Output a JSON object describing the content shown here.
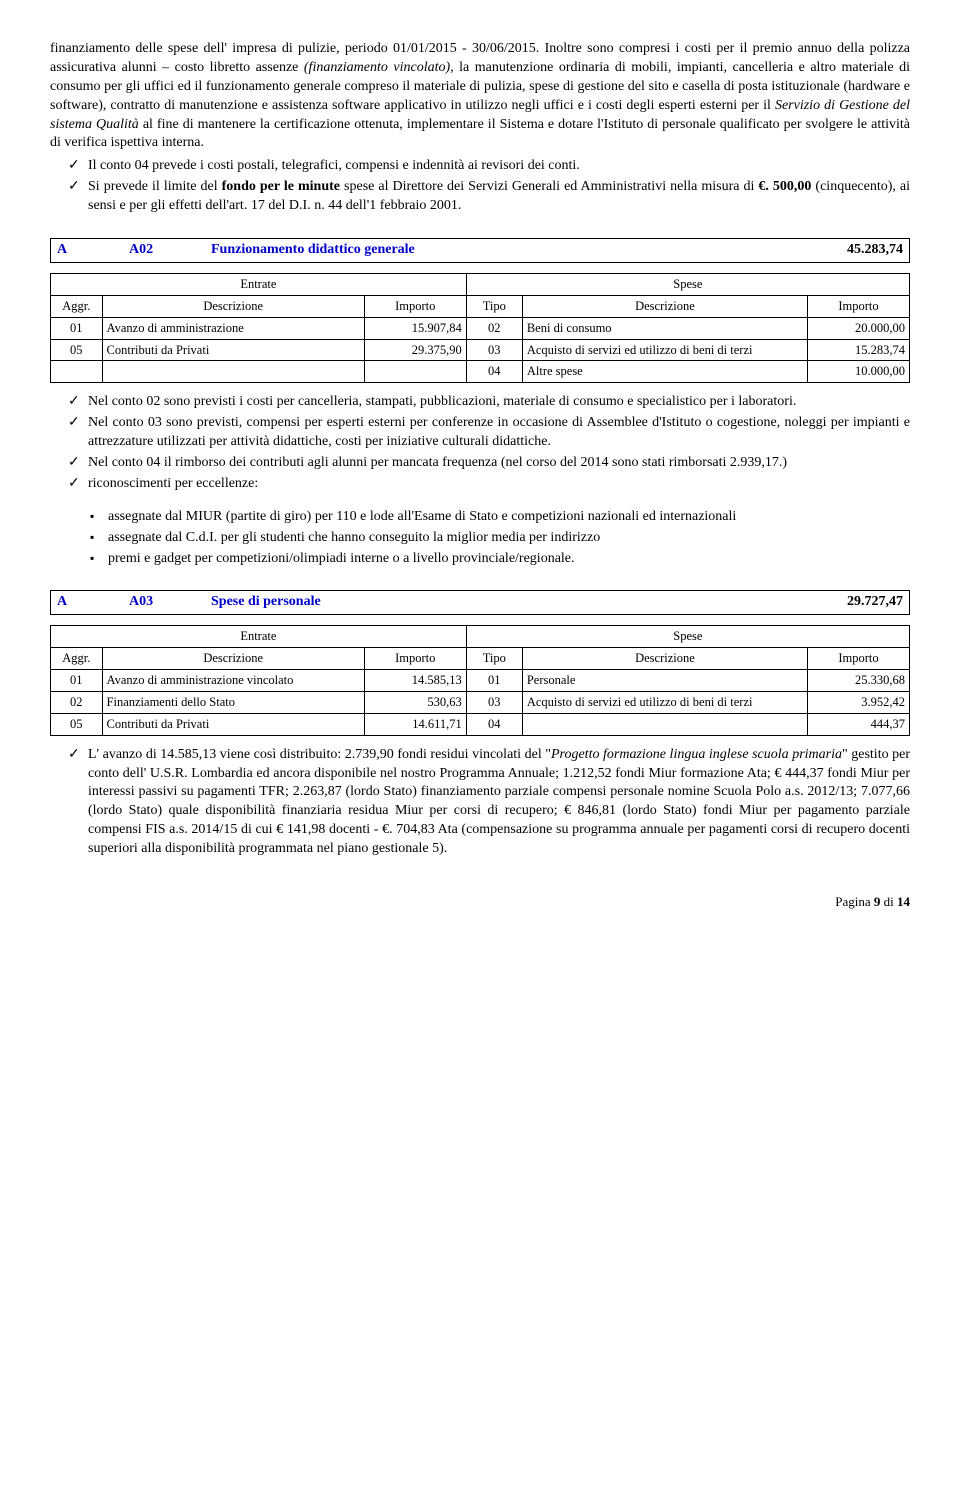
{
  "intro": {
    "p1_a": "finanziamento delle spese dell' impresa di pulizie, periodo 01/01/2015 - 30/06/2015.   Inoltre  sono compresi i costi per il premio annuo della polizza assicurativa alunni – costo libretto assenze ",
    "p1_b": "(finanziamento vincolato),",
    "p1_c": " la manutenzione ordinaria di mobili, impianti,  cancelleria  e altro materiale di consumo per gli uffici ed il funzionamento generale compreso il materiale di pulizia, spese di gestione del sito e casella di posta istituzionale (hardware e  software), contratto di manutenzione e assistenza software applicativo in utilizzo negli uffici e i costi degli esperti esterni per il ",
    "p1_d": " Servizio di Gestione del sistema  Qualità ",
    "p1_e": "al fine di mantenere la certificazione ottenuta, implementare il Sistema e dotare l'Istituto di personale qualificato per svolgere le attività di verifica ispettiva interna."
  },
  "checks1": {
    "c1": "Il conto 04 prevede i costi postali, telegrafici, compensi e indennità ai revisori dei conti.",
    "c2_a": "Si prevede  il limite del ",
    "c2_b": "fondo per le minute",
    "c2_c": " spese al Direttore dei Servizi Generali ed Amministrativi nella misura di ",
    "c2_d": "€. 500,00",
    "c2_e": " (cinquecento), ai sensi e per gli effetti dell'art. 17 del D.I. n. 44 dell'1 febbraio 2001."
  },
  "sectionA02": {
    "codeA": "A",
    "code": "A02",
    "title": "Funzionamento didattico generale",
    "amount": "45.283,74"
  },
  "tableHeaders": {
    "entrate": "Entrate",
    "spese": "Spese",
    "aggr": "Aggr.",
    "desc": "Descrizione",
    "importo": "Importo",
    "tipo": "Tipo"
  },
  "tableA02": {
    "r1": {
      "a": "01",
      "d": "Avanzo di amministrazione",
      "i": "15.907,84",
      "t": "02",
      "d2": "Beni di consumo",
      "i2": "20.000,00"
    },
    "r2": {
      "a": "05",
      "d": "Contributi da Privati",
      "i": "29.375,90",
      "t": "03",
      "d2": "Acquisto di servizi ed utilizzo di beni di terzi",
      "i2": "15.283,74"
    },
    "r3": {
      "t": "04",
      "d2": "Altre spese",
      "i2": "10.000,00"
    }
  },
  "checksA02": {
    "c1": "Nel conto 02 sono previsti i costi per cancelleria, stampati, pubblicazioni, materiale di consumo e specialistico per i laboratori.",
    "c2": "Nel conto 03  sono previsti, compensi per esperti esterni per conferenze in occasione di Assemblee d'Istituto o cogestione, noleggi per impianti e  attrezzature utilizzati per  attività didattiche, costi per iniziative culturali didattiche.",
    "c3": "Nel conto 04 il rimborso dei contributi agli alunni per mancata frequenza (nel corso del 2014 sono stati rimborsati 2.939,17.)",
    "c4": "riconoscimenti per eccellenze:"
  },
  "bullets": {
    "b1": "assegnate dal MIUR (partite di giro) per 110 e lode all'Esame di Stato e  competizioni nazionali ed internazionali",
    "b2": "assegnate dal C.d.I. per gli studenti che hanno conseguito la miglior media per indirizzo",
    "b3": "premi e gadget per competizioni/olimpiadi interne o a livello provinciale/regionale."
  },
  "sectionA03": {
    "codeA": "A",
    "code": "A03",
    "title": "Spese di personale",
    "amount": "29.727,47"
  },
  "tableA03": {
    "r1": {
      "a": "01",
      "d": "Avanzo di amministrazione vincolato",
      "i": "14.585,13",
      "t": "01",
      "d2": "Personale",
      "i2": "25.330,68"
    },
    "r2": {
      "a": "02",
      "d": "Finanziamenti dello Stato",
      "i": "530,63",
      "t": "03",
      "d2": "Acquisto di servizi ed utilizzo di beni di terzi",
      "i2": "3.952,42"
    },
    "r3": {
      "a": "05",
      "d": "Contributi da Privati",
      "i": "14.611,71",
      "t": "04",
      "d2": "",
      "i2": "444,37"
    }
  },
  "finalPara": {
    "p_a": "L' avanzo di 14.585,13 viene così distribuito: 2.739,90 fondi residui vincolati del \"",
    "p_b": "Progetto formazione lingua inglese scuola primaria",
    "p_c": "\" gestito per conto dell' U.S.R. Lombardia ed ancora disponibile nel nostro Programma Annuale; 1.212,52 fondi Miur formazione Ata; € 444,37 fondi Miur per interessi passivi su pagamenti TFR; 2.263,87 (lordo Stato) finanziamento parziale compensi personale nomine Scuola Polo a.s. 2012/13; 7.077,66 (lordo Stato) quale disponibilità finanziaria residua Miur per corsi di recupero; € 846,81 (lordo Stato)  fondi Miur per pagamento parziale compensi FIS a.s. 2014/15 di cui € 141,98 docenti - €. 704,83 Ata  (compensazione su programma annuale  per pagamenti corsi di recupero docenti superiori alla disponibilità programmata nel piano gestionale 5)."
  },
  "footer": {
    "label": "Pagina ",
    "page": "9",
    "of": " di ",
    "total": "14"
  }
}
